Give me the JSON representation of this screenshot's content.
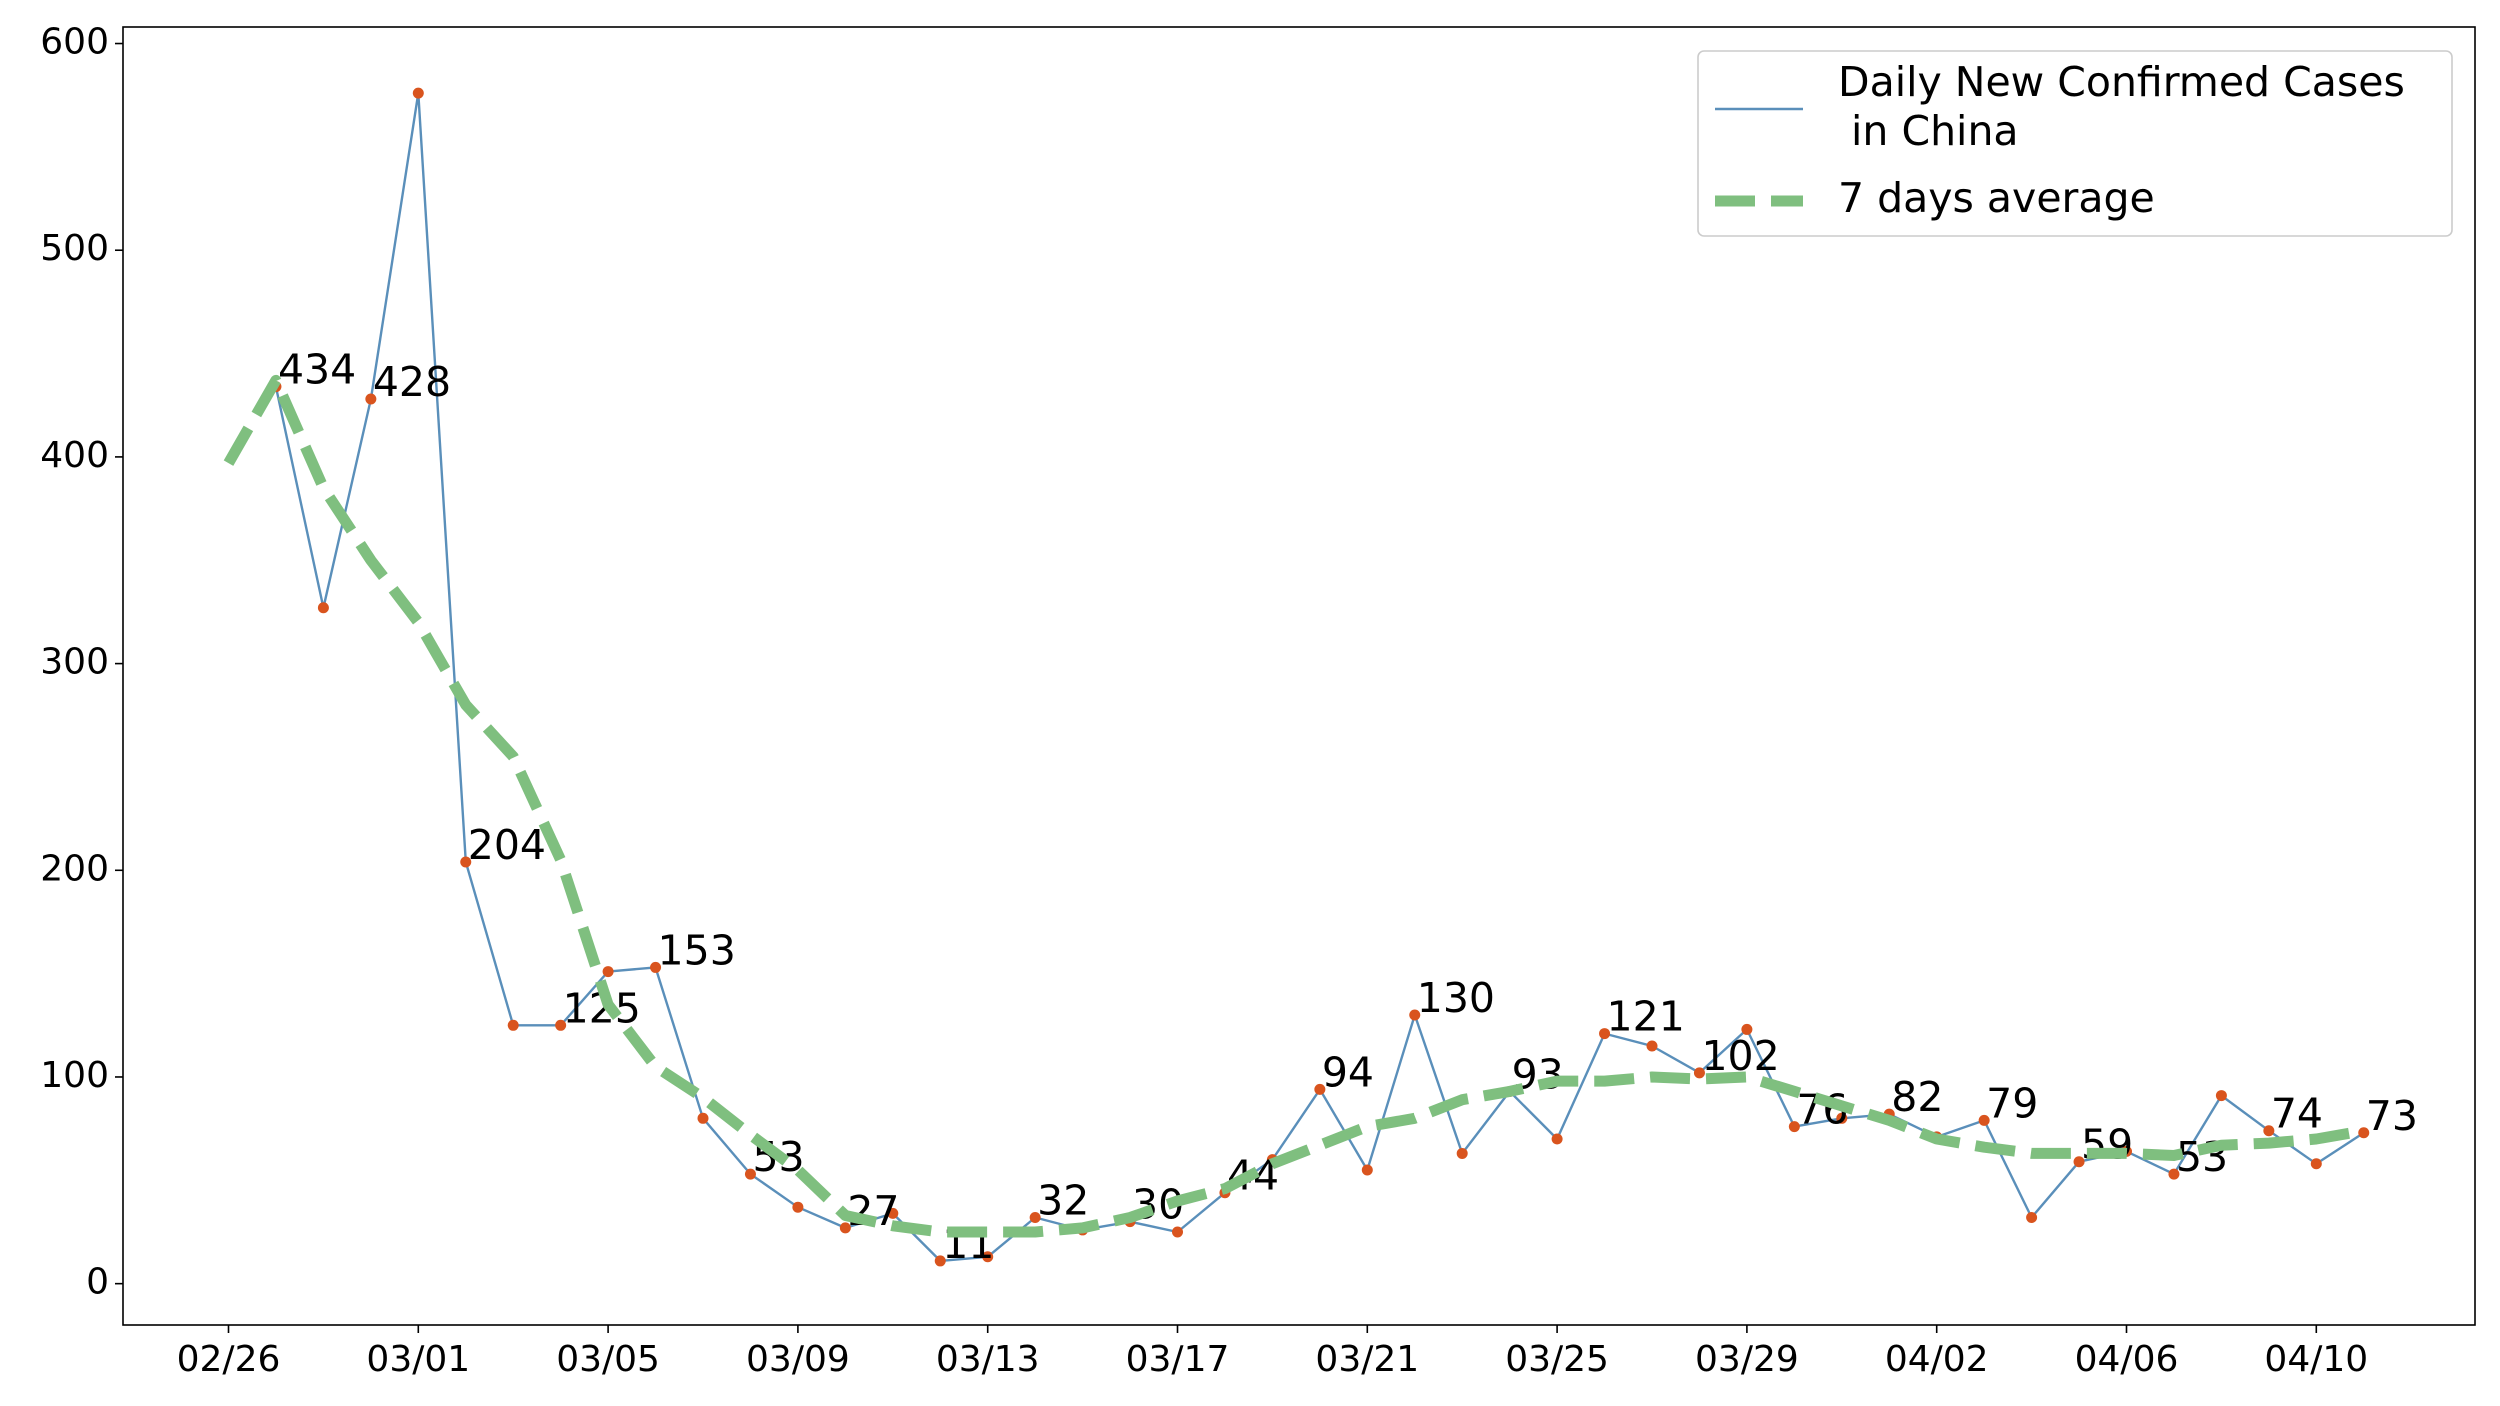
{
  "chart_data": {
    "type": "line",
    "categories": [
      "02/26",
      null,
      null,
      null,
      "03/01",
      null,
      null,
      null,
      "03/05",
      null,
      null,
      null,
      "03/09",
      null,
      null,
      null,
      "03/13",
      null,
      null,
      null,
      "03/17",
      null,
      null,
      null,
      "03/21",
      null,
      null,
      null,
      "03/25",
      null,
      null,
      null,
      "03/29",
      null,
      null,
      null,
      "04/02",
      null,
      null,
      null,
      "04/06",
      null,
      null,
      null,
      "04/10",
      null
    ],
    "series": [
      {
        "name": "Daily New Confirmed Cases\n in China",
        "color": "#5a8fba",
        "marker_color": "#d9541e",
        "style": "solid",
        "values": [
          null,
          434,
          327,
          428,
          576,
          204,
          125,
          125,
          151,
          153,
          80,
          53,
          37,
          27,
          34,
          11,
          13,
          32,
          26,
          30,
          25,
          44,
          60,
          94,
          55,
          130,
          63,
          93,
          70,
          121,
          115,
          102,
          123,
          76,
          80,
          82,
          71,
          79,
          32,
          59,
          64,
          53,
          91,
          74,
          58,
          73
        ],
        "value_labels": [
          null,
          "434",
          null,
          "428",
          null,
          "204",
          null,
          "125",
          null,
          "153",
          null,
          "53",
          null,
          "27",
          null,
          "11",
          null,
          "32",
          null,
          "30",
          null,
          "44",
          null,
          "94",
          null,
          "130",
          null,
          "93",
          null,
          "121",
          null,
          "102",
          null,
          "76",
          null,
          "82",
          null,
          "79",
          null,
          "59",
          null,
          "53",
          null,
          "74",
          null,
          "73"
        ]
      },
      {
        "name": "7 days average",
        "color": "#7fbf7f",
        "style": "dashed",
        "values": [
          397,
          437,
          385,
          350,
          320,
          280,
          255,
          205,
          135,
          105,
          90,
          72,
          55,
          33,
          28,
          25,
          25,
          25,
          27,
          32,
          40,
          46,
          58,
          67,
          76,
          80,
          89,
          93,
          98,
          98,
          100,
          99,
          100,
          93,
          86,
          79,
          70,
          66,
          63,
          63,
          63,
          62,
          67,
          68,
          70,
          74
        ]
      }
    ],
    "label_color": "#e0521b",
    "ylim": [
      -20,
      608
    ],
    "yticks": [
      0,
      100,
      200,
      300,
      400,
      500,
      600
    ],
    "legend": "upper right",
    "grid": false
  }
}
